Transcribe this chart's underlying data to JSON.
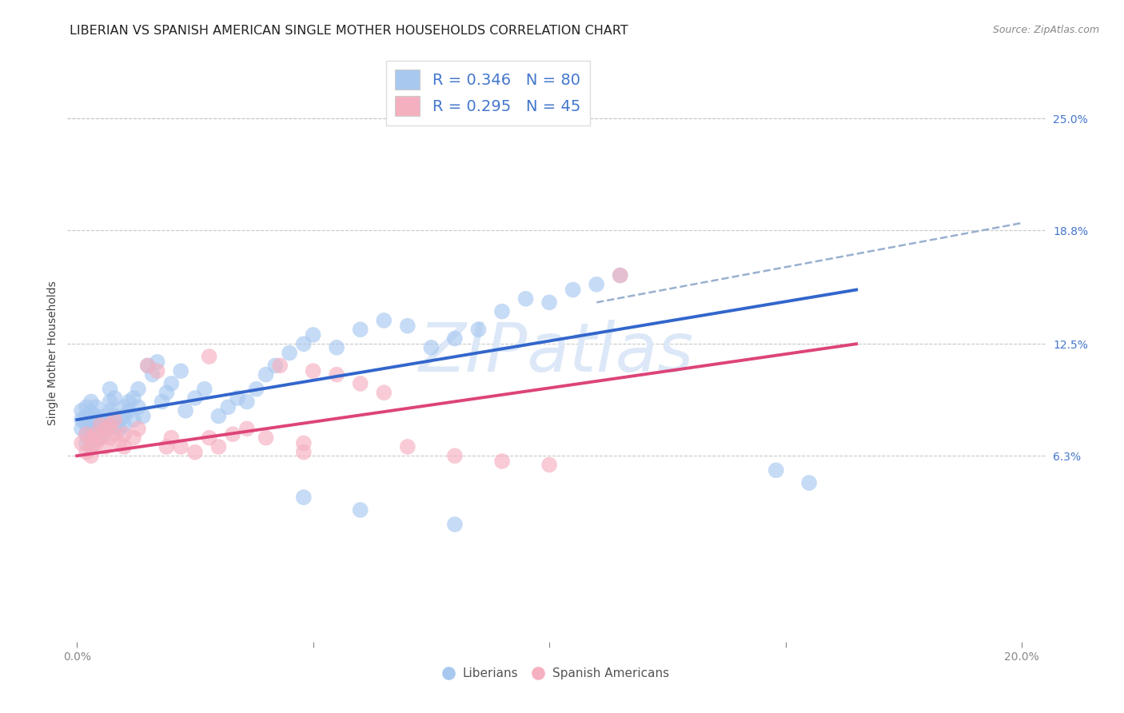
{
  "title": "LIBERIAN VS SPANISH AMERICAN SINGLE MOTHER HOUSEHOLDS CORRELATION CHART",
  "source": "Source: ZipAtlas.com",
  "ylabel": "Single Mother Households",
  "xlim": [
    -0.002,
    0.205
  ],
  "ylim": [
    -0.04,
    0.28
  ],
  "ytick_labels_right": [
    "6.3%",
    "12.5%",
    "18.8%",
    "25.0%"
  ],
  "ytick_values_right": [
    0.063,
    0.125,
    0.188,
    0.25
  ],
  "color_blue": "#a8c8f0",
  "color_pink": "#f5b0c0",
  "color_blue_line": "#3366cc",
  "color_pink_line": "#dd4477",
  "color_dashed": "#9ab0d0",
  "watermark_color": "#dce8f8",
  "background_color": "#ffffff",
  "grid_color": "#c8c8c8",
  "title_fontsize": 11.5,
  "axis_label_fontsize": 10,
  "tick_fontsize": 10,
  "legend_fontsize": 14,
  "blue_x": [
    0.001,
    0.001,
    0.001,
    0.002,
    0.002,
    0.002,
    0.002,
    0.002,
    0.003,
    0.003,
    0.003,
    0.003,
    0.003,
    0.003,
    0.004,
    0.004,
    0.004,
    0.004,
    0.005,
    0.005,
    0.005,
    0.006,
    0.006,
    0.006,
    0.007,
    0.007,
    0.007,
    0.008,
    0.008,
    0.008,
    0.009,
    0.009,
    0.01,
    0.01,
    0.01,
    0.011,
    0.011,
    0.012,
    0.012,
    0.013,
    0.013,
    0.014,
    0.015,
    0.016,
    0.017,
    0.018,
    0.019,
    0.02,
    0.022,
    0.023,
    0.025,
    0.027,
    0.03,
    0.032,
    0.034,
    0.036,
    0.038,
    0.04,
    0.042,
    0.045,
    0.048,
    0.05,
    0.055,
    0.06,
    0.065,
    0.07,
    0.075,
    0.08,
    0.085,
    0.09,
    0.095,
    0.1,
    0.105,
    0.11,
    0.115,
    0.148,
    0.155,
    0.048,
    0.06,
    0.08
  ],
  "blue_y": [
    0.083,
    0.088,
    0.078,
    0.085,
    0.09,
    0.08,
    0.075,
    0.07,
    0.082,
    0.087,
    0.093,
    0.078,
    0.073,
    0.068,
    0.075,
    0.08,
    0.085,
    0.09,
    0.078,
    0.083,
    0.073,
    0.075,
    0.08,
    0.085,
    0.088,
    0.093,
    0.1,
    0.095,
    0.085,
    0.08,
    0.083,
    0.078,
    0.09,
    0.085,
    0.08,
    0.093,
    0.088,
    0.083,
    0.095,
    0.1,
    0.09,
    0.085,
    0.113,
    0.108,
    0.115,
    0.093,
    0.098,
    0.103,
    0.11,
    0.088,
    0.095,
    0.1,
    0.085,
    0.09,
    0.095,
    0.093,
    0.1,
    0.108,
    0.113,
    0.12,
    0.125,
    0.13,
    0.123,
    0.133,
    0.138,
    0.135,
    0.123,
    0.128,
    0.133,
    0.143,
    0.15,
    0.148,
    0.155,
    0.158,
    0.163,
    0.055,
    0.048,
    0.04,
    0.033,
    0.025
  ],
  "pink_x": [
    0.001,
    0.002,
    0.002,
    0.003,
    0.003,
    0.003,
    0.004,
    0.004,
    0.005,
    0.005,
    0.006,
    0.006,
    0.007,
    0.007,
    0.008,
    0.008,
    0.009,
    0.01,
    0.01,
    0.012,
    0.013,
    0.015,
    0.017,
    0.019,
    0.02,
    0.022,
    0.025,
    0.028,
    0.03,
    0.033,
    0.036,
    0.04,
    0.043,
    0.048,
    0.05,
    0.055,
    0.06,
    0.065,
    0.07,
    0.08,
    0.09,
    0.1,
    0.028,
    0.048,
    0.115
  ],
  "pink_y": [
    0.07,
    0.065,
    0.075,
    0.063,
    0.068,
    0.073,
    0.07,
    0.075,
    0.073,
    0.08,
    0.068,
    0.078,
    0.073,
    0.08,
    0.083,
    0.075,
    0.07,
    0.075,
    0.068,
    0.073,
    0.078,
    0.113,
    0.11,
    0.068,
    0.073,
    0.068,
    0.065,
    0.073,
    0.068,
    0.075,
    0.078,
    0.073,
    0.113,
    0.07,
    0.11,
    0.108,
    0.103,
    0.098,
    0.068,
    0.063,
    0.06,
    0.058,
    0.118,
    0.065,
    0.163
  ],
  "blue_line_x": [
    0.0,
    0.165
  ],
  "blue_line_y": [
    0.083,
    0.155
  ],
  "pink_line_x": [
    0.0,
    0.165
  ],
  "pink_line_y": [
    0.063,
    0.125
  ],
  "dashed_line_x": [
    0.11,
    0.2
  ],
  "dashed_line_y": [
    0.148,
    0.192
  ]
}
